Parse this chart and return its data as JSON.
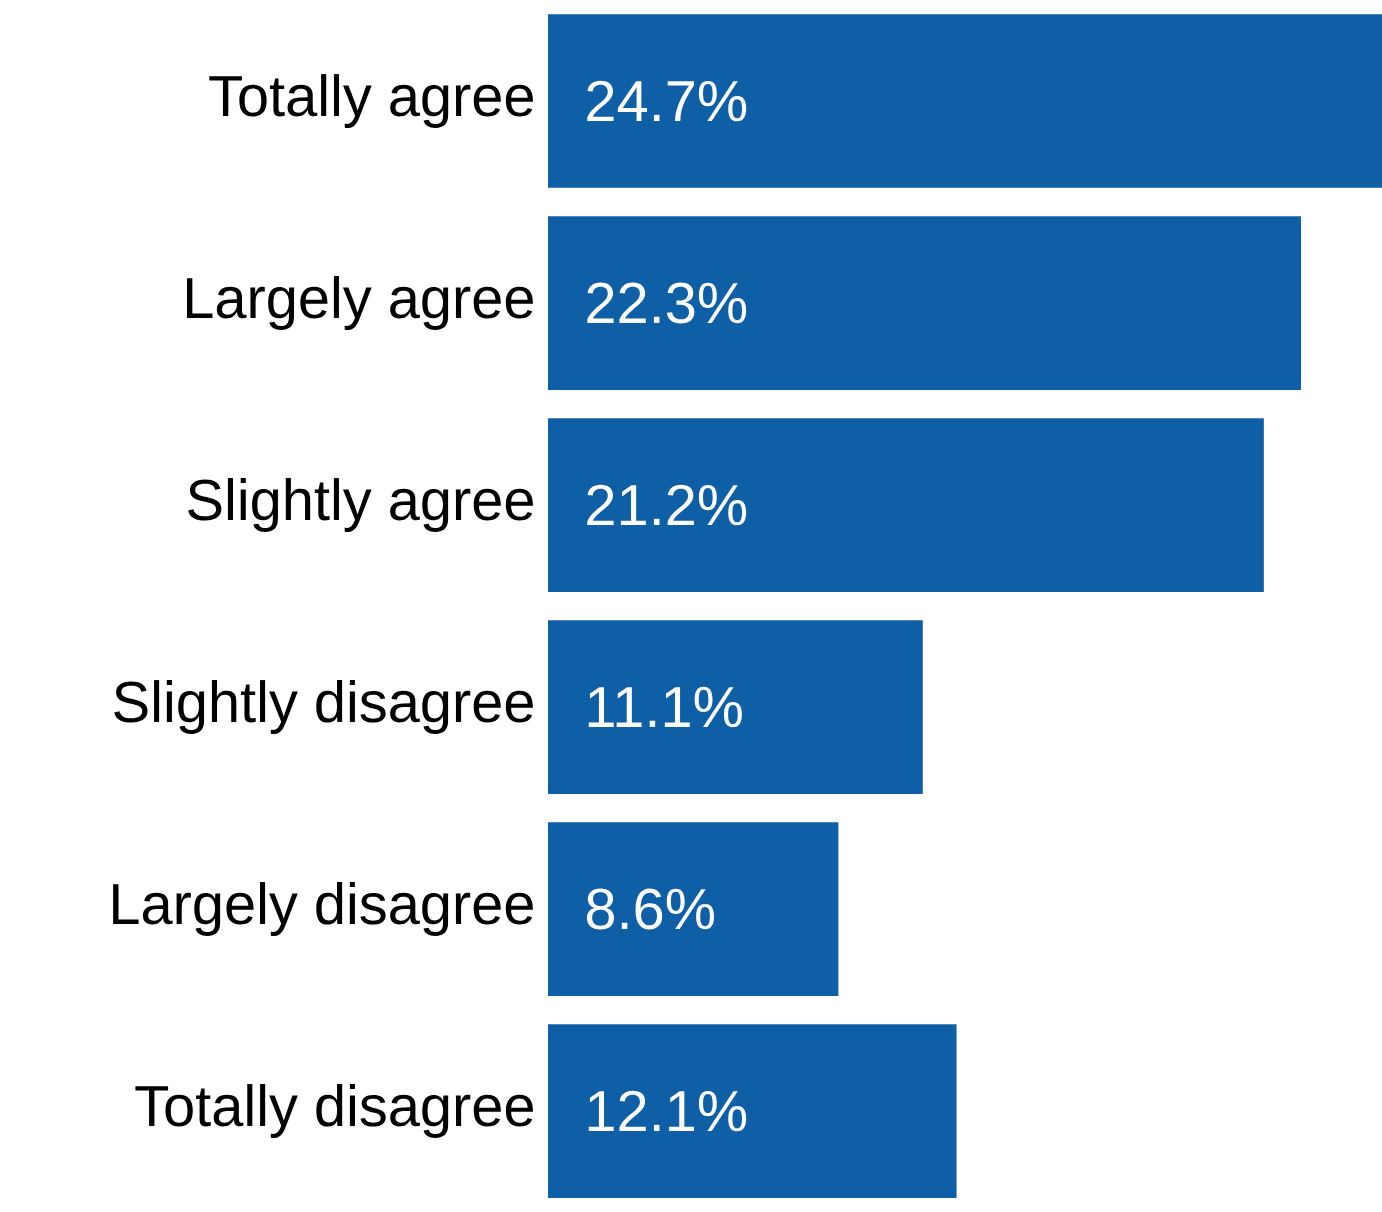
{
  "chart_data": {
    "type": "bar",
    "orientation": "horizontal",
    "categories": [
      "Totally agree",
      "Largely agree",
      "Slightly agree",
      "Slightly disagree",
      "Largely disagree",
      "Totally disagree"
    ],
    "values": [
      24.7,
      22.3,
      21.2,
      11.1,
      8.6,
      12.1
    ],
    "value_labels": [
      "24.7%",
      "22.3%",
      "21.2%",
      "11.1%",
      "8.6%",
      "12.1%"
    ],
    "color": "#0f5fa6"
  }
}
